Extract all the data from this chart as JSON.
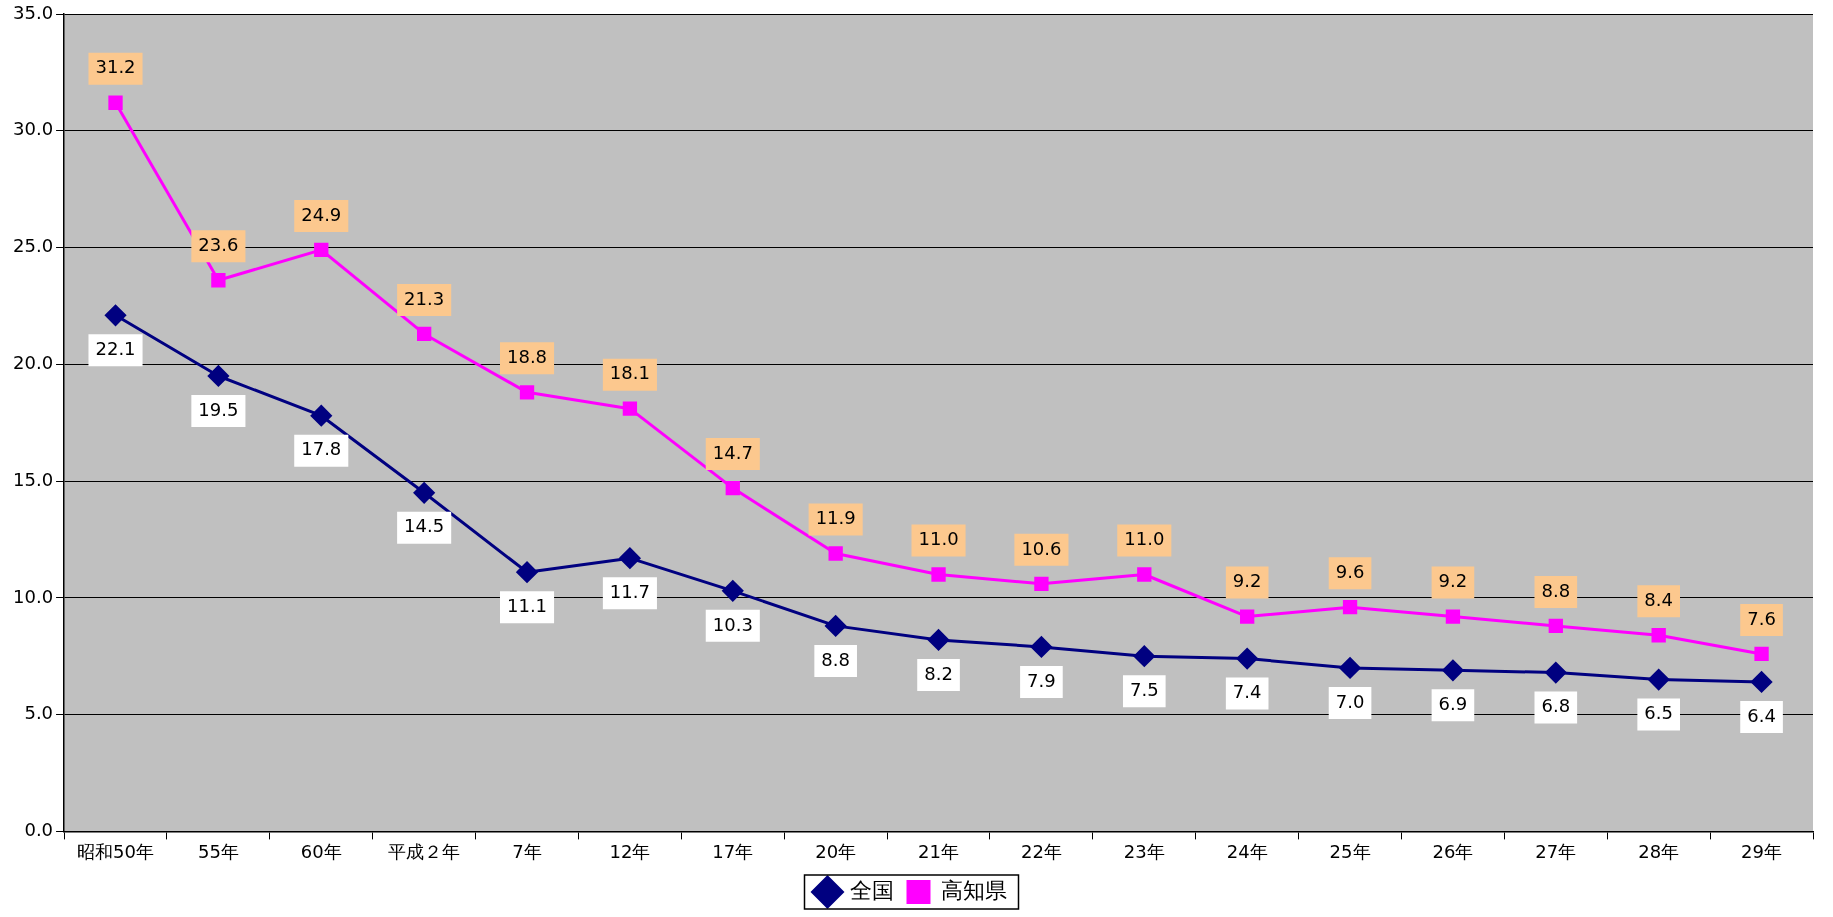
{
  "chart_data": {
    "type": "line",
    "categories": [
      "昭和50年",
      "55年",
      "60年",
      "平成２年",
      "7年",
      "12年",
      "17年",
      "20年",
      "21年",
      "22年",
      "23年",
      "24年",
      "25年",
      "26年",
      "27年",
      "28年",
      "29年"
    ],
    "series": [
      {
        "name": "全国",
        "color": "#000080",
        "marker": "diamond",
        "values": [
          22.1,
          19.5,
          17.8,
          14.5,
          11.1,
          11.7,
          10.3,
          8.8,
          8.2,
          7.9,
          7.5,
          7.4,
          7.0,
          6.9,
          6.8,
          6.5,
          6.4
        ],
        "value_labels": [
          "22.1",
          "19.5",
          "17.8",
          "14.5",
          "11.1",
          "11.7",
          "10.3",
          "8.8",
          "8.2",
          "7.9",
          "7.5",
          "7.4",
          "7.0",
          "6.9",
          "6.8",
          "6.5",
          "6.4"
        ]
      },
      {
        "name": "高知県",
        "color": "#ff00ff",
        "marker": "square",
        "values": [
          31.2,
          23.6,
          24.9,
          21.3,
          18.8,
          18.1,
          14.7,
          11.9,
          11.0,
          10.6,
          11.0,
          9.2,
          9.6,
          9.2,
          8.8,
          8.4,
          7.6
        ],
        "value_labels": [
          "31.2",
          "23.6",
          "24.9",
          "21.3",
          "18.8",
          "18.1",
          "14.7",
          "11.9",
          "11.0",
          "10.6",
          "11.0",
          "9.2",
          "9.6",
          "9.2",
          "8.8",
          "8.4",
          "7.6"
        ]
      }
    ],
    "ylim": [
      0,
      35
    ],
    "yticks": [
      {
        "value": 0,
        "label": "0.0"
      },
      {
        "value": 5,
        "label": "5.0"
      },
      {
        "value": 10,
        "label": "10.0"
      },
      {
        "value": 15,
        "label": "15.0"
      },
      {
        "value": 20,
        "label": "20.0"
      },
      {
        "value": 25,
        "label": "25.0"
      },
      {
        "value": 30,
        "label": "30.0"
      },
      {
        "value": 35,
        "label": "35.0"
      }
    ],
    "grid": "y",
    "legend": "bottom",
    "line_style": "solid"
  }
}
